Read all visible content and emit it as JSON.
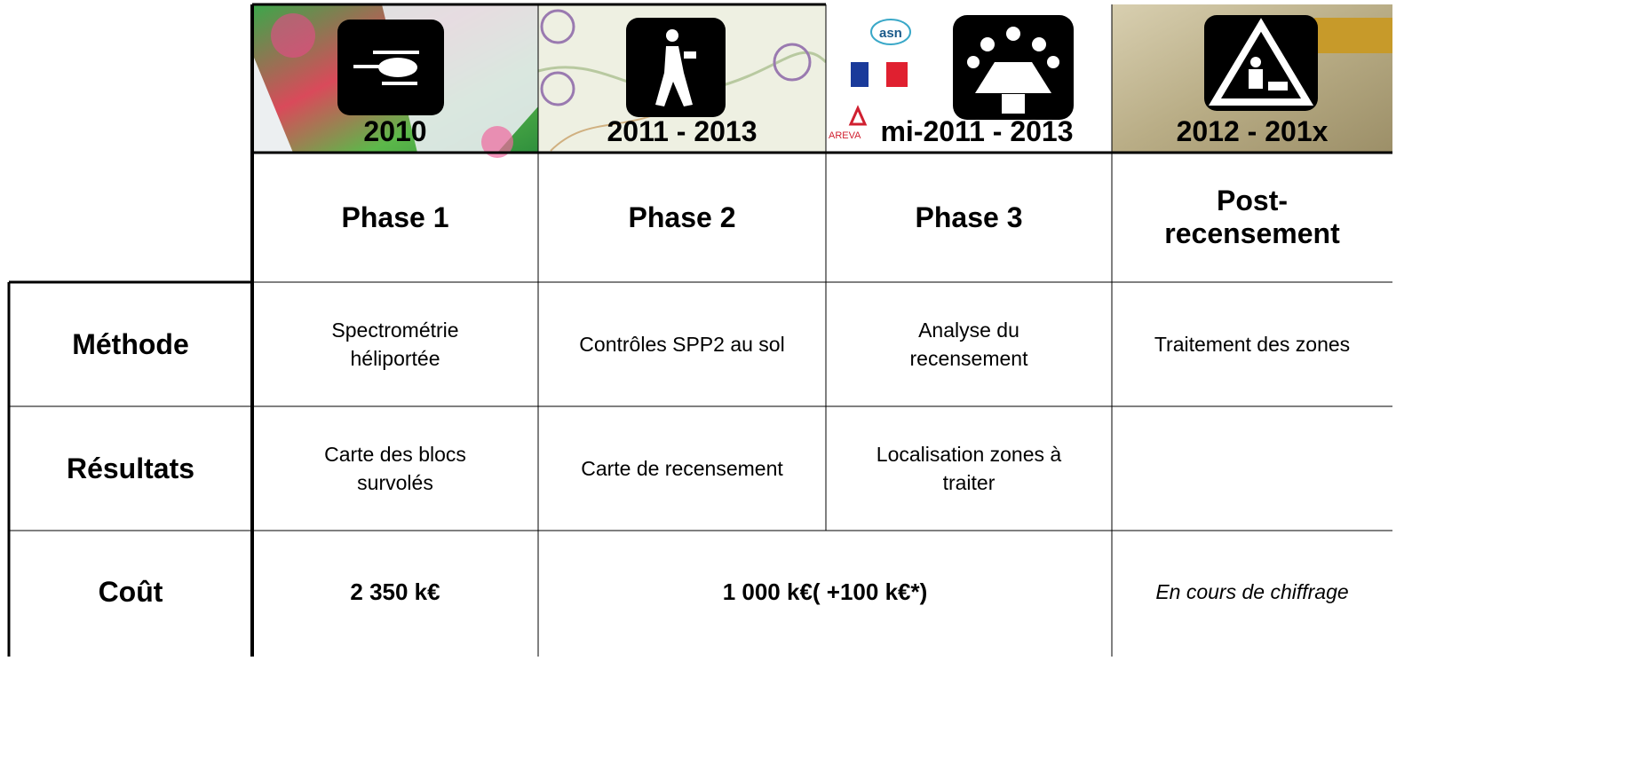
{
  "images": [
    {
      "year": "2010"
    },
    {
      "year": "2011 - 2013"
    },
    {
      "year": "mi-2011 - 2013"
    },
    {
      "year": "2012 - 201x"
    }
  ],
  "logos": [
    "asn",
    "AREVA"
  ],
  "table": {
    "header": [
      "Phase 1",
      "Phase 2",
      "Phase 3",
      "Post-recensement"
    ],
    "rows": [
      {
        "label": "Méthode",
        "cells": [
          "Spectrométrie héliportée",
          "Contrôles SPP2 au sol",
          "Analyse du recensement",
          "Traitement des zones"
        ]
      },
      {
        "label": "Résultats",
        "cells": [
          "Carte des blocs survolés",
          "Carte de recensement",
          "Localisation zones à traiter"
        ]
      },
      {
        "label": "Coût",
        "cells": [
          "2 350 k€",
          "1 000 k€( +100 k€*)",
          "En cours de chiffrage"
        ]
      }
    ]
  }
}
